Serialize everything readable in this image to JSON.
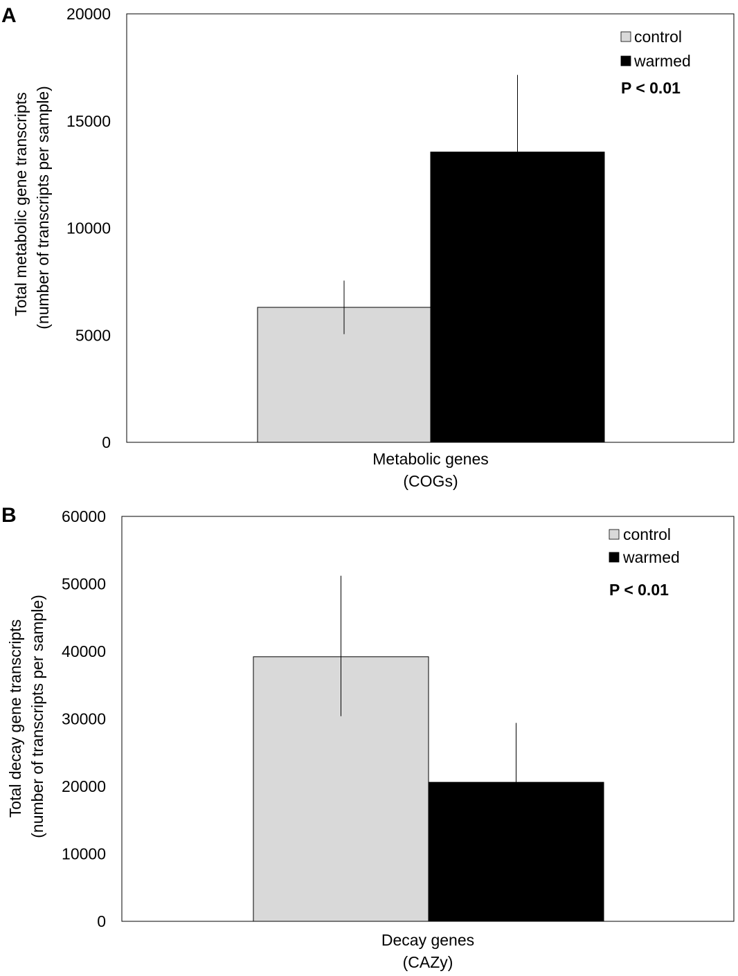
{
  "chart_data": [
    {
      "type": "bar",
      "panel_label": "A",
      "categories": [
        "Metabolic genes",
        "(COGs)"
      ],
      "ylabel_line1": "Total metabolic gene transcripts",
      "ylabel_line2": "(number of transcripts per sample)",
      "ylim": [
        0,
        20000
      ],
      "yticks": [
        0,
        5000,
        10000,
        15000,
        20000
      ],
      "series": [
        {
          "name": "control",
          "value": 6300,
          "error_high": 7550,
          "error_low": 5050,
          "color": "#d9d9d9"
        },
        {
          "name": "warmed",
          "value": 13550,
          "error_high": 17150,
          "error_low": 13550,
          "color": "#000000"
        }
      ],
      "p_value": "P < 0.01",
      "legend_position": "top-right"
    },
    {
      "type": "bar",
      "panel_label": "B",
      "categories": [
        "Decay genes",
        "(CAZy)"
      ],
      "ylabel_line1": "Total decay gene transcripts",
      "ylabel_line2": "(number of transcripts per sample)",
      "ylim": [
        0,
        60000
      ],
      "yticks": [
        0,
        10000,
        20000,
        30000,
        40000,
        50000,
        60000
      ],
      "series": [
        {
          "name": "control",
          "value": 39200,
          "error_high": 51200,
          "error_low": 30400,
          "color": "#d9d9d9"
        },
        {
          "name": "warmed",
          "value": 20600,
          "error_high": 29400,
          "error_low": 20600,
          "color": "#000000"
        }
      ],
      "p_value": "P < 0.01",
      "legend_position": "top-right"
    }
  ]
}
